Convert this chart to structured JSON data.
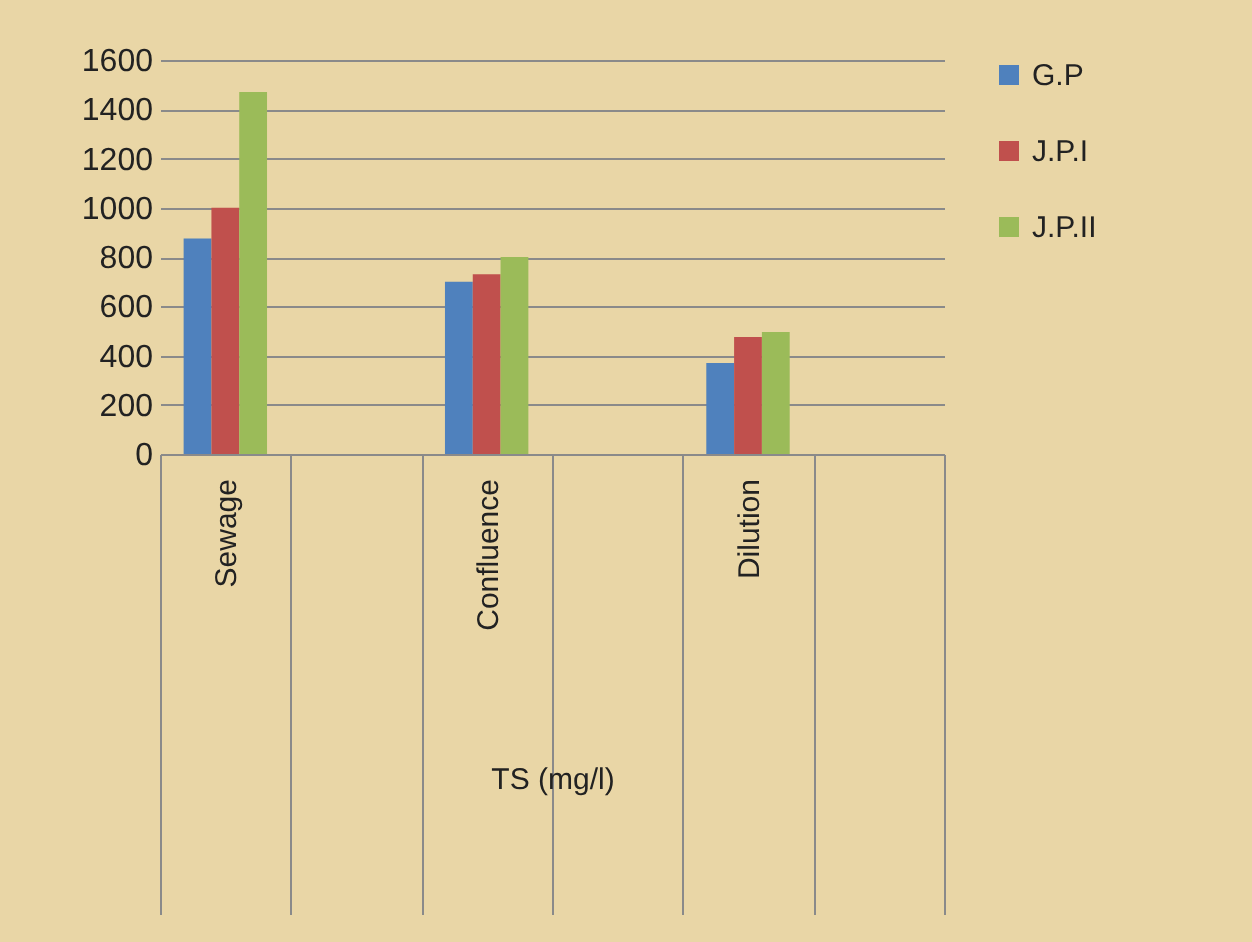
{
  "chart_data": {
    "type": "bar",
    "xlabel": "TS (mg/l)",
    "categories": [
      "Sewage",
      null,
      "Confluence",
      null,
      "Dilution",
      null
    ],
    "series": [
      {
        "name": "G.P",
        "color": "#4f81bd",
        "values": [
          875,
          null,
          700,
          null,
          370,
          null
        ]
      },
      {
        "name": "J.P.I",
        "color": "#c0504d",
        "values": [
          1000,
          null,
          730,
          null,
          475,
          null
        ]
      },
      {
        "name": "J.P.II",
        "color": "#9bbb59",
        "values": [
          1470,
          null,
          800,
          null,
          495,
          null
        ]
      }
    ],
    "ylim": [
      0,
      1600
    ],
    "yticks": [
      0,
      200,
      400,
      600,
      800,
      1000,
      1200,
      1400,
      1600
    ],
    "grid": "y",
    "legend": "right"
  }
}
